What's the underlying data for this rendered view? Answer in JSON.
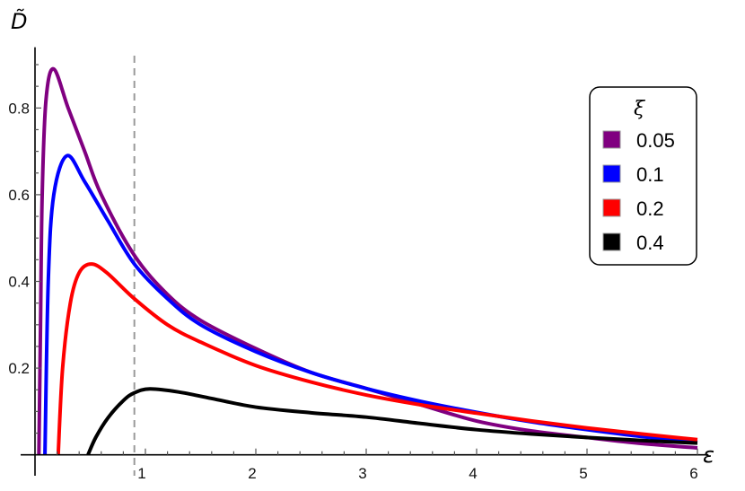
{
  "chart_data": {
    "type": "line",
    "title": "",
    "xlabel": "ε",
    "ylabel": "D̃",
    "xlim": [
      -0.13,
      6.1
    ],
    "ylim": [
      0,
      0.94
    ],
    "x_ticks": [
      1,
      2,
      3,
      4,
      5,
      6
    ],
    "x_tick_labels": [
      "1",
      "2",
      "3",
      "4",
      "5",
      "6"
    ],
    "y_ticks": [
      0.2,
      0.4,
      0.6,
      0.8
    ],
    "y_tick_labels": [
      "0.2",
      "0.4",
      "0.6",
      "0.8"
    ],
    "grid": false,
    "reference_line": {
      "type": "vertical",
      "x": 0.9,
      "style": "dashed",
      "color": "#999999"
    },
    "legend": {
      "title": "ξ",
      "placement": "top-right"
    },
    "series": [
      {
        "name": "0.05",
        "color": "#800080",
        "points": [
          [
            0.035,
            0
          ],
          [
            0.05,
            0.3
          ],
          [
            0.065,
            0.6
          ],
          [
            0.1,
            0.82
          ],
          [
            0.17,
            0.89
          ],
          [
            0.3,
            0.8
          ],
          [
            0.45,
            0.7
          ],
          [
            0.6,
            0.6
          ],
          [
            0.9,
            0.46
          ],
          [
            1.2,
            0.37
          ],
          [
            1.5,
            0.31
          ],
          [
            2,
            0.245
          ],
          [
            2.5,
            0.19
          ],
          [
            3,
            0.153
          ],
          [
            3.5,
            0.115
          ],
          [
            4,
            0.078
          ],
          [
            4.5,
            0.055
          ],
          [
            5,
            0.04
          ],
          [
            5.5,
            0.026
          ],
          [
            6,
            0.016
          ]
        ]
      },
      {
        "name": "0.1",
        "color": "#0000ff",
        "points": [
          [
            0.09,
            0
          ],
          [
            0.12,
            0.4
          ],
          [
            0.17,
            0.6
          ],
          [
            0.29,
            0.69
          ],
          [
            0.45,
            0.63
          ],
          [
            0.66,
            0.54
          ],
          [
            0.9,
            0.44
          ],
          [
            1.2,
            0.36
          ],
          [
            1.5,
            0.3
          ],
          [
            2,
            0.238
          ],
          [
            2.5,
            0.19
          ],
          [
            3,
            0.153
          ],
          [
            3.5,
            0.123
          ],
          [
            4,
            0.098
          ],
          [
            4.5,
            0.076
          ],
          [
            5,
            0.058
          ],
          [
            5.5,
            0.042
          ],
          [
            6,
            0.029
          ]
        ]
      },
      {
        "name": "0.2",
        "color": "#ff0000",
        "points": [
          [
            0.21,
            0
          ],
          [
            0.25,
            0.2
          ],
          [
            0.32,
            0.35
          ],
          [
            0.4,
            0.42
          ],
          [
            0.51,
            0.44
          ],
          [
            0.65,
            0.42
          ],
          [
            0.9,
            0.36
          ],
          [
            1.2,
            0.3
          ],
          [
            1.5,
            0.26
          ],
          [
            2,
            0.206
          ],
          [
            2.5,
            0.168
          ],
          [
            3,
            0.138
          ],
          [
            3.5,
            0.115
          ],
          [
            4,
            0.096
          ],
          [
            4.5,
            0.078
          ],
          [
            5,
            0.062
          ],
          [
            5.5,
            0.048
          ],
          [
            6,
            0.035
          ]
        ]
      },
      {
        "name": "0.4",
        "color": "#000000",
        "points": [
          [
            0.48,
            0
          ],
          [
            0.55,
            0.04
          ],
          [
            0.66,
            0.085
          ],
          [
            0.8,
            0.125
          ],
          [
            0.9,
            0.143
          ],
          [
            1.04,
            0.152
          ],
          [
            1.3,
            0.145
          ],
          [
            1.6,
            0.13
          ],
          [
            2,
            0.11
          ],
          [
            2.5,
            0.097
          ],
          [
            3,
            0.087
          ],
          [
            3.5,
            0.072
          ],
          [
            4,
            0.058
          ],
          [
            4.5,
            0.048
          ],
          [
            5,
            0.04
          ],
          [
            5.5,
            0.033
          ],
          [
            6,
            0.027
          ]
        ]
      }
    ]
  }
}
